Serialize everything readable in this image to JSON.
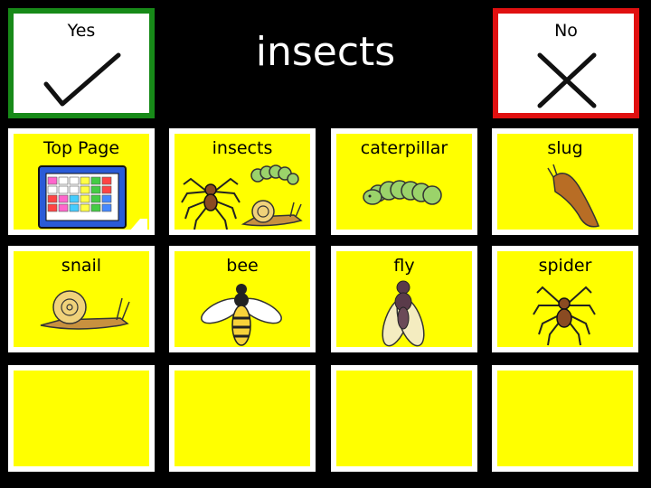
{
  "header": {
    "title": "insects",
    "yes_label": "Yes",
    "no_label": "No"
  },
  "colors": {
    "background": "#000000",
    "tile_fill": "#ffff00",
    "tile_border": "#ffffff",
    "yes_border": "#178a18",
    "no_border": "#e01010"
  },
  "grid": {
    "row1": [
      "Top Page",
      "insects",
      "caterpillar",
      "slug"
    ],
    "row2": [
      "snail",
      "bee",
      "fly",
      "spider"
    ]
  },
  "icons": {
    "yes": "checkmark-icon",
    "no": "cross-icon",
    "top_page": "grid-board-icon",
    "insects": "insects-group-icon",
    "caterpillar": "caterpillar-icon",
    "slug": "slug-icon",
    "snail": "snail-icon",
    "bee": "bee-icon",
    "fly": "fly-icon",
    "spider": "spider-icon"
  }
}
